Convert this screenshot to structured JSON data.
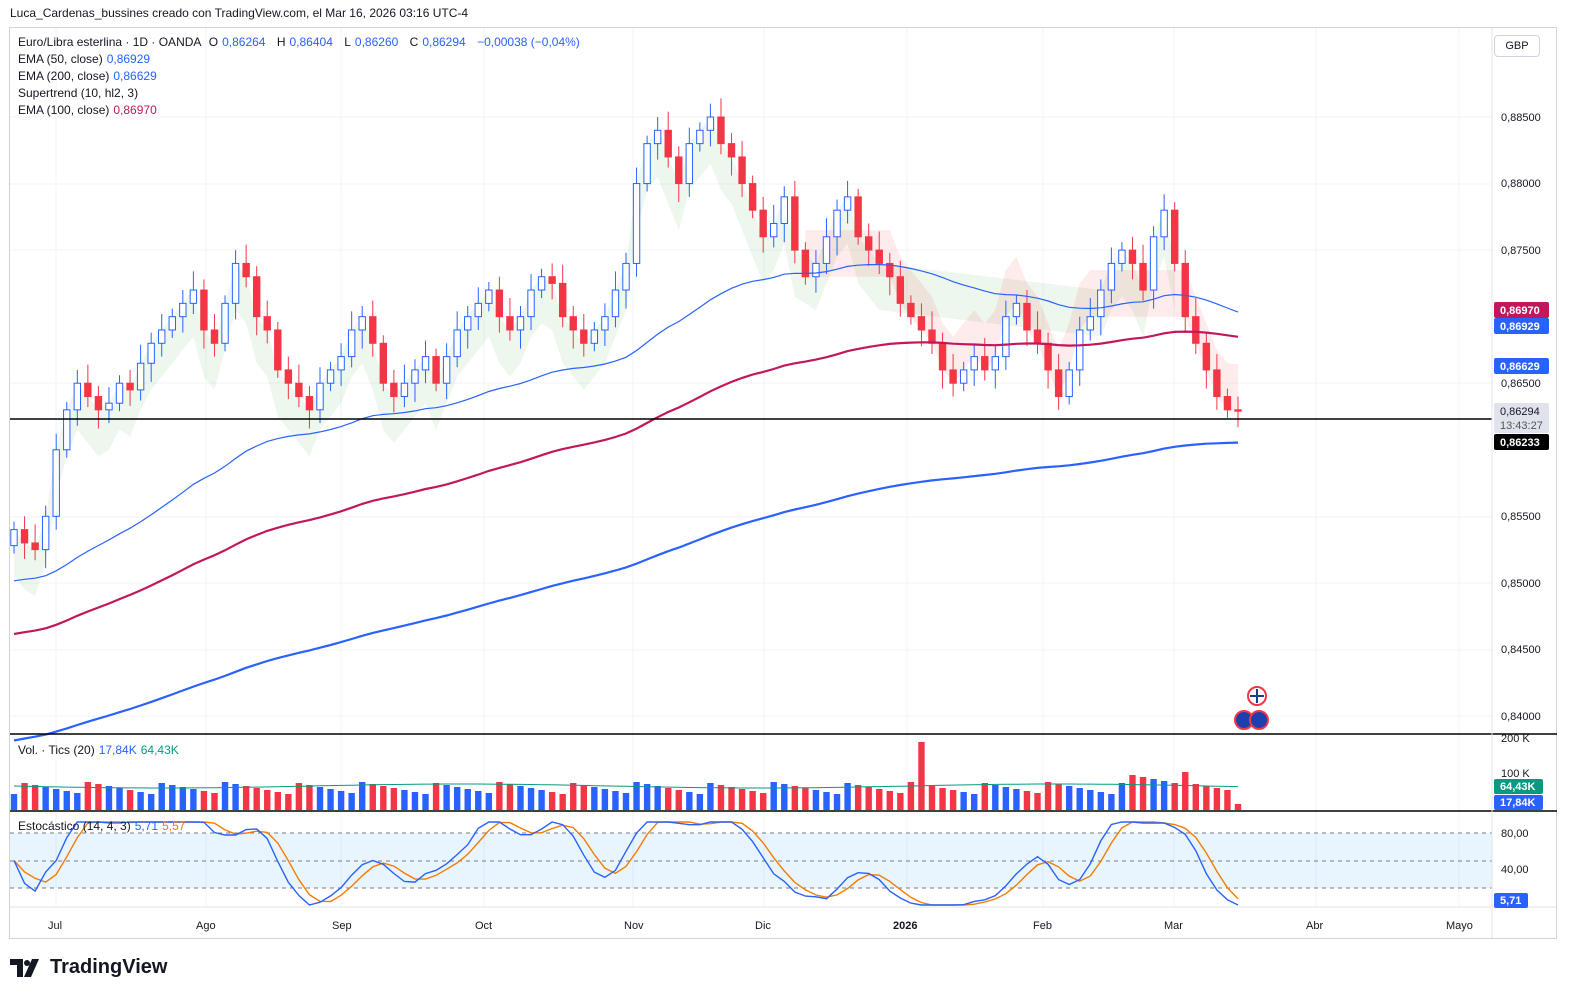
{
  "header": {
    "author_line": "Luca_Cardenas_bussines creado con TradingView.com, el Mar 16, 2026 03:16 UTC-4"
  },
  "currency": "GBP",
  "brand": {
    "name": "TradingView"
  },
  "colors": {
    "up": "#2962ff",
    "down": "#f23645",
    "ema50": "#2962ff",
    "ema200": "#2962ff",
    "ema100": "#c2185b",
    "stoch_k": "#2962ff",
    "stoch_d": "#f57c00",
    "support": "#000000"
  },
  "legend": {
    "symbol": "Euro/Libra esterlina · 1D · OANDA",
    "o_label": "O",
    "o": "0,86264",
    "h_label": "H",
    "h": "0,86404",
    "l_label": "L",
    "l": "0,86260",
    "c_label": "C",
    "c": "0,86294",
    "change": "−0,00038 (−0,04%)",
    "ema50_label": "EMA (50, close)",
    "ema50": "0,86929",
    "ema200_label": "EMA (200, close)",
    "ema200": "0,86629",
    "supertrend_label": "Supertrend (10, hl2, 3)",
    "ema100_label": "EMA (100, close)",
    "ema100": "0,86970"
  },
  "volume_legend": {
    "label": "Vol. · Tics (20)",
    "v1": "17,84K",
    "v2": "64,43K"
  },
  "stoch_legend": {
    "label": "Estocástico (14, 4, 3)",
    "k": "5,71",
    "d": "5,57"
  },
  "price_badges": {
    "ema100": "0,86970",
    "ema50": "0,86929",
    "ema200": "0,86629",
    "last": "0,86294",
    "countdown": "13:43:27",
    "support": "0,86233"
  },
  "volume_badges": {
    "ma": "64,43K",
    "vol": "17,84K"
  },
  "stoch_badge": "5,71",
  "chart_data": {
    "type": "candlestick",
    "price_axis": {
      "ticks": [
        "0,88500",
        "0,88000",
        "0,87500",
        "0,86500",
        "0,85500",
        "0,85000",
        "0,84500",
        "0,84000"
      ],
      "ylim": [
        0.84,
        0.89
      ]
    },
    "volume_axis": {
      "ticks": [
        "200 K",
        "100 K"
      ]
    },
    "stoch_axis": {
      "ticks": [
        "80,00",
        "40,00"
      ]
    },
    "x_ticks": [
      "Jul",
      "Ago",
      "Sep",
      "Oct",
      "Nov",
      "Dic",
      "2026",
      "Feb",
      "Mar",
      "Abr",
      "Mayo"
    ],
    "support_level": 0.86233,
    "ohlc_sample": {
      "start": "2025-06-23",
      "closes": [
        0.854,
        0.853,
        0.8525,
        0.855,
        0.86,
        0.863,
        0.865,
        0.864,
        0.863,
        0.8635,
        0.865,
        0.8645,
        0.8665,
        0.868,
        0.869,
        0.87,
        0.871,
        0.872,
        0.869,
        0.868,
        0.871,
        0.874,
        0.873,
        0.87,
        0.869,
        0.866,
        0.865,
        0.864,
        0.863,
        0.865,
        0.866,
        0.867,
        0.869,
        0.87,
        0.868,
        0.865,
        0.864,
        0.865,
        0.866,
        0.867,
        0.865,
        0.867,
        0.869,
        0.87,
        0.871,
        0.872,
        0.87,
        0.869,
        0.87,
        0.872,
        0.873,
        0.8725,
        0.87,
        0.869,
        0.868,
        0.869,
        0.87,
        0.872,
        0.874,
        0.88,
        0.883,
        0.884,
        0.882,
        0.88,
        0.883,
        0.884,
        0.885,
        0.883,
        0.882,
        0.88,
        0.878,
        0.876,
        0.877,
        0.879,
        0.875,
        0.873,
        0.874,
        0.876,
        0.878,
        0.879,
        0.876,
        0.875,
        0.874,
        0.873,
        0.871,
        0.87,
        0.869,
        0.868,
        0.866,
        0.865,
        0.866,
        0.867,
        0.866,
        0.867,
        0.87,
        0.871,
        0.869,
        0.868,
        0.866,
        0.864,
        0.866,
        0.869,
        0.87,
        0.872,
        0.874,
        0.875,
        0.874,
        0.872,
        0.876,
        0.878,
        0.874,
        0.87,
        0.868,
        0.866,
        0.864,
        0.863,
        0.8629
      ]
    }
  }
}
